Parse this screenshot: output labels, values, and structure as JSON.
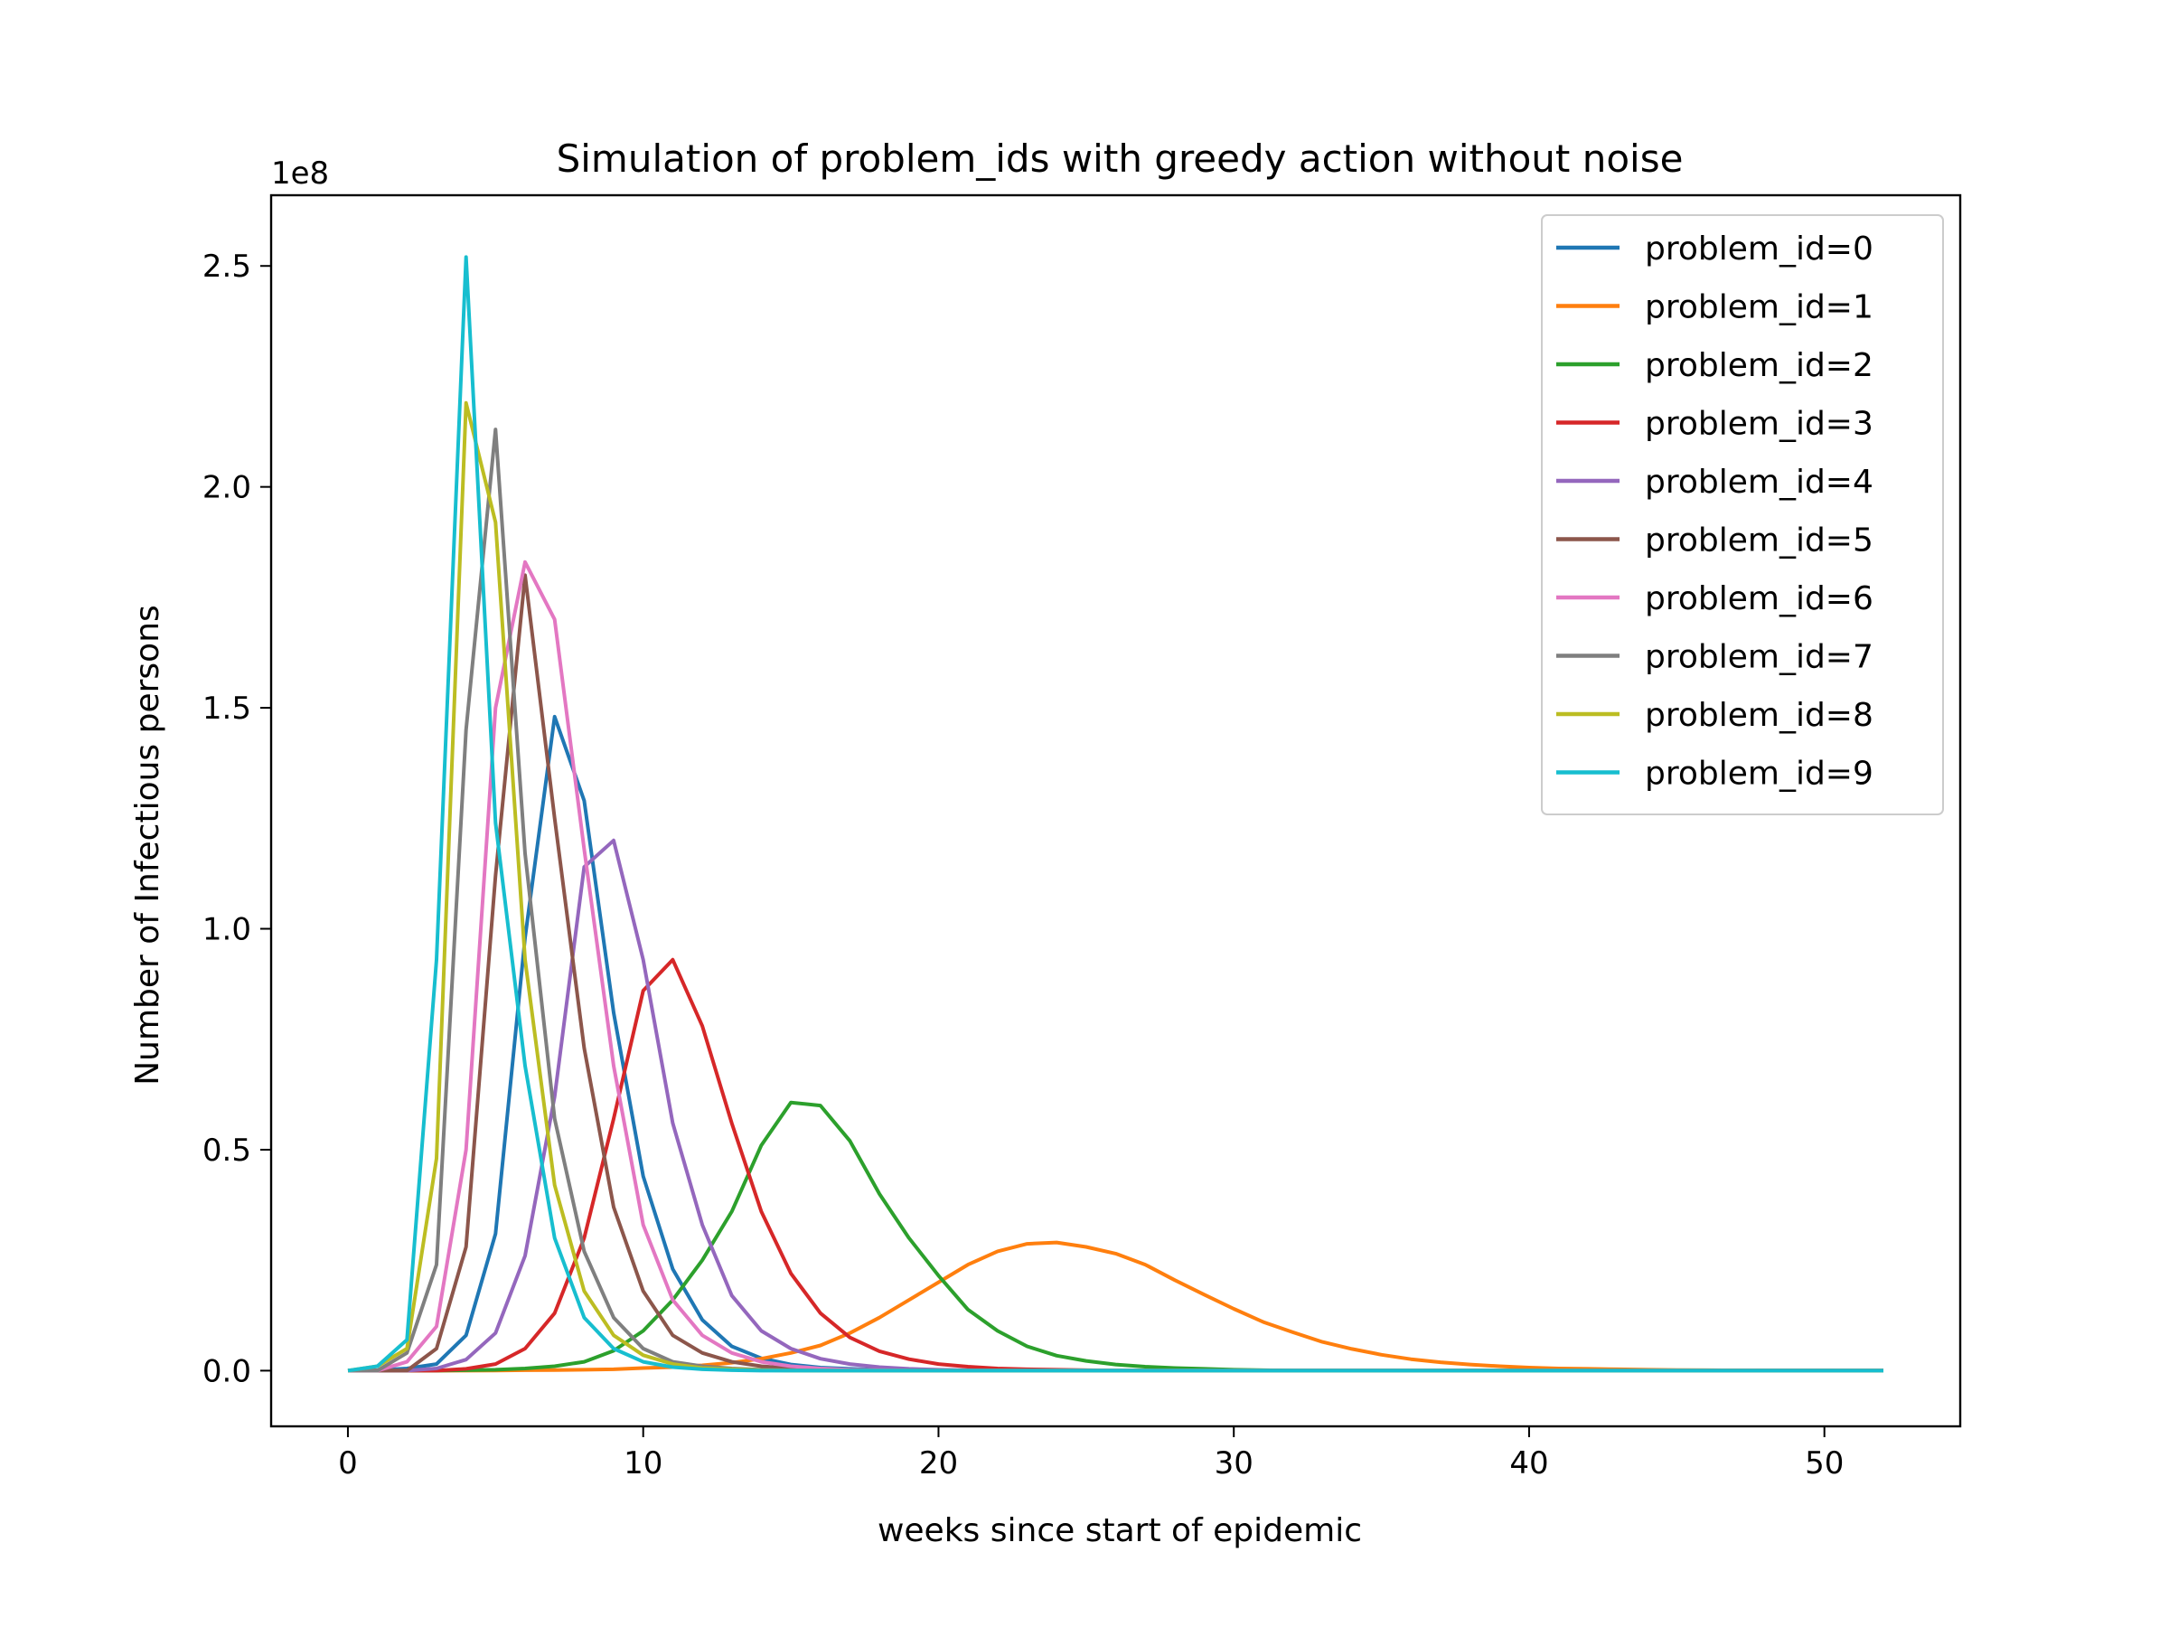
{
  "chart_data": {
    "type": "line",
    "title": "Simulation of problem_ids with greedy action without noise",
    "xlabel": "weeks since start of epidemic",
    "ylabel": "Number of Infectious persons",
    "y_offset_label": "1e8",
    "xlim": [
      -2.6,
      54.6
    ],
    "ylim": [
      -0.126,
      2.66
    ],
    "xticks": [
      0,
      10,
      20,
      30,
      40,
      50
    ],
    "xtick_labels": [
      "0",
      "10",
      "20",
      "30",
      "40",
      "50"
    ],
    "yticks": [
      0.0,
      0.5,
      1.0,
      1.5,
      2.0,
      2.5
    ],
    "ytick_labels": [
      "0.0",
      "0.5",
      "1.0",
      "1.5",
      "2.0",
      "2.5"
    ],
    "grid": false,
    "legend_position": "top-right",
    "x": [
      0,
      1,
      2,
      3,
      4,
      5,
      6,
      7,
      8,
      9,
      10,
      11,
      12,
      13,
      14,
      15,
      16,
      17,
      18,
      19,
      20,
      21,
      22,
      23,
      24,
      25,
      26,
      27,
      28,
      29,
      30,
      31,
      32,
      33,
      34,
      35,
      36,
      37,
      38,
      39,
      40,
      41,
      42,
      43,
      44,
      45,
      46,
      47,
      48,
      49,
      50,
      51,
      52
    ],
    "series": [
      {
        "name": "problem_id=0",
        "color": "#1f77b4",
        "values": [
          0,
          0.001,
          0.005,
          0.015,
          0.08,
          0.31,
          0.98,
          1.48,
          1.29,
          0.81,
          0.44,
          0.23,
          0.115,
          0.055,
          0.028,
          0.014,
          0.007,
          0.004,
          0.002,
          0.001,
          0,
          0,
          0,
          0,
          0,
          0,
          0,
          0,
          0,
          0,
          0,
          0,
          0,
          0,
          0,
          0,
          0,
          0,
          0,
          0,
          0,
          0,
          0,
          0,
          0,
          0,
          0,
          0,
          0,
          0,
          0,
          0,
          0
        ]
      },
      {
        "name": "problem_id=1",
        "color": "#ff7f0e",
        "values": [
          0,
          0,
          0,
          0,
          0,
          0.0005,
          0.001,
          0.0015,
          0.002,
          0.003,
          0.006,
          0.008,
          0.012,
          0.018,
          0.027,
          0.04,
          0.057,
          0.085,
          0.12,
          0.16,
          0.2,
          0.24,
          0.27,
          0.287,
          0.29,
          0.28,
          0.265,
          0.24,
          0.205,
          0.172,
          0.14,
          0.11,
          0.087,
          0.065,
          0.049,
          0.036,
          0.026,
          0.019,
          0.014,
          0.01,
          0.007,
          0.005,
          0.004,
          0.003,
          0.002,
          0.0015,
          0.001,
          0.0008,
          0.0005,
          0.0003,
          0.0002,
          0.0001,
          0
        ]
      },
      {
        "name": "problem_id=2",
        "color": "#2ca02c",
        "values": [
          0,
          0,
          0,
          0,
          0.001,
          0.002,
          0.005,
          0.01,
          0.02,
          0.045,
          0.09,
          0.16,
          0.25,
          0.36,
          0.51,
          0.607,
          0.6,
          0.52,
          0.4,
          0.3,
          0.215,
          0.138,
          0.09,
          0.055,
          0.034,
          0.022,
          0.014,
          0.009,
          0.006,
          0.004,
          0.002,
          0.001,
          0,
          0,
          0,
          0,
          0,
          0,
          0,
          0,
          0,
          0,
          0,
          0,
          0,
          0,
          0,
          0,
          0,
          0,
          0,
          0,
          0
        ]
      },
      {
        "name": "problem_id=3",
        "color": "#d62728",
        "values": [
          0,
          0,
          0,
          0,
          0.004,
          0.015,
          0.05,
          0.13,
          0.3,
          0.57,
          0.86,
          0.93,
          0.78,
          0.56,
          0.36,
          0.22,
          0.13,
          0.075,
          0.044,
          0.026,
          0.015,
          0.009,
          0.005,
          0.003,
          0.002,
          0.001,
          0,
          0,
          0,
          0,
          0,
          0,
          0,
          0,
          0,
          0,
          0,
          0,
          0,
          0,
          0,
          0,
          0,
          0,
          0,
          0,
          0,
          0,
          0,
          0,
          0,
          0,
          0
        ]
      },
      {
        "name": "problem_id=4",
        "color": "#9467bd",
        "values": [
          0,
          0,
          0,
          0.005,
          0.025,
          0.085,
          0.26,
          0.62,
          1.14,
          1.2,
          0.93,
          0.56,
          0.33,
          0.17,
          0.09,
          0.05,
          0.027,
          0.015,
          0.008,
          0.004,
          0.002,
          0.001,
          0,
          0,
          0,
          0,
          0,
          0,
          0,
          0,
          0,
          0,
          0,
          0,
          0,
          0,
          0,
          0,
          0,
          0,
          0,
          0,
          0,
          0,
          0,
          0,
          0,
          0,
          0,
          0,
          0,
          0,
          0
        ]
      },
      {
        "name": "problem_id=5",
        "color": "#8c564b",
        "values": [
          0,
          0,
          0,
          0.05,
          0.28,
          1.12,
          1.8,
          1.25,
          0.73,
          0.37,
          0.18,
          0.08,
          0.04,
          0.02,
          0.01,
          0.005,
          0.003,
          0.001,
          0,
          0,
          0,
          0,
          0,
          0,
          0,
          0,
          0,
          0,
          0,
          0,
          0,
          0,
          0,
          0,
          0,
          0,
          0,
          0,
          0,
          0,
          0,
          0,
          0,
          0,
          0,
          0,
          0,
          0,
          0,
          0,
          0,
          0,
          0
        ]
      },
      {
        "name": "problem_id=6",
        "color": "#e377c2",
        "values": [
          0,
          0,
          0.02,
          0.1,
          0.5,
          1.5,
          1.83,
          1.7,
          1.18,
          0.69,
          0.33,
          0.16,
          0.08,
          0.04,
          0.02,
          0.01,
          0.005,
          0.002,
          0.001,
          0,
          0,
          0,
          0,
          0,
          0,
          0,
          0,
          0,
          0,
          0,
          0,
          0,
          0,
          0,
          0,
          0,
          0,
          0,
          0,
          0,
          0,
          0,
          0,
          0,
          0,
          0,
          0,
          0,
          0,
          0,
          0,
          0,
          0
        ]
      },
      {
        "name": "problem_id=7",
        "color": "#7f7f7f",
        "values": [
          0,
          0,
          0.04,
          0.24,
          1.45,
          2.13,
          1.17,
          0.57,
          0.27,
          0.12,
          0.05,
          0.02,
          0.01,
          0.005,
          0.002,
          0.001,
          0,
          0,
          0,
          0,
          0,
          0,
          0,
          0,
          0,
          0,
          0,
          0,
          0,
          0,
          0,
          0,
          0,
          0,
          0,
          0,
          0,
          0,
          0,
          0,
          0,
          0,
          0,
          0,
          0,
          0,
          0,
          0,
          0,
          0,
          0,
          0,
          0
        ]
      },
      {
        "name": "problem_id=8",
        "color": "#bcbd22",
        "values": [
          0,
          0.01,
          0.05,
          0.48,
          2.19,
          1.92,
          0.93,
          0.42,
          0.18,
          0.08,
          0.035,
          0.015,
          0.006,
          0.003,
          0.001,
          0,
          0,
          0,
          0,
          0,
          0,
          0,
          0,
          0,
          0,
          0,
          0,
          0,
          0,
          0,
          0,
          0,
          0,
          0,
          0,
          0,
          0,
          0,
          0,
          0,
          0,
          0,
          0,
          0,
          0,
          0,
          0,
          0,
          0,
          0,
          0,
          0,
          0
        ]
      },
      {
        "name": "problem_id=9",
        "color": "#17becf",
        "values": [
          0,
          0.01,
          0.07,
          0.93,
          2.52,
          1.24,
          0.69,
          0.3,
          0.12,
          0.05,
          0.02,
          0.008,
          0.003,
          0.001,
          0,
          0,
          0,
          0,
          0,
          0,
          0,
          0,
          0,
          0,
          0,
          0,
          0,
          0,
          0,
          0,
          0,
          0,
          0,
          0,
          0,
          0,
          0,
          0,
          0,
          0,
          0,
          0,
          0,
          0,
          0,
          0,
          0,
          0,
          0,
          0,
          0,
          0,
          0
        ]
      }
    ]
  }
}
